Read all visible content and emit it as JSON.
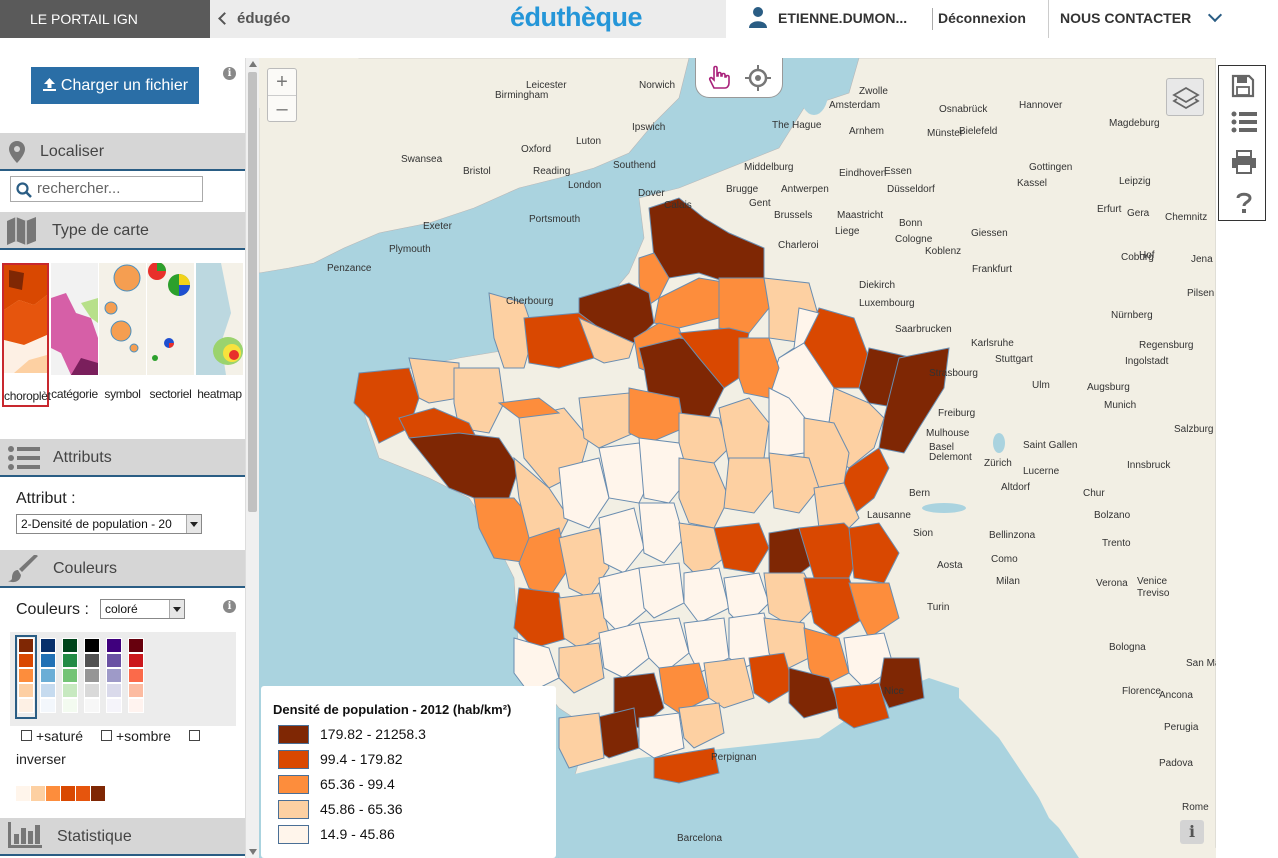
{
  "header": {
    "portail": "LE PORTAIL IGN",
    "back_link": "édugéo",
    "logo": "éduthèque",
    "user": "ETIENNE.DUMON...",
    "logout": "Déconnexion",
    "contact": "NOUS CONTACTER"
  },
  "sidebar": {
    "upload_label": "Charger un fichier",
    "localiser": "Localiser",
    "search_placeholder": "rechercher...",
    "map_type": "Type de carte",
    "thumbnails": [
      {
        "label": "choroplèt"
      },
      {
        "label": "catégorie"
      },
      {
        "label": "symbol"
      },
      {
        "label": "sectoriel"
      },
      {
        "label": "heatmap"
      }
    ],
    "attributes_head": "Attributs",
    "attribute_label": "Attribut :",
    "attribute_value": "2-Densité de population - 20",
    "colors_head": "Couleurs",
    "colors_label": "Couleurs :",
    "colors_value": "coloré",
    "check_sature": "+saturé",
    "check_sombre": "+sombre",
    "check_inverser": "inverser",
    "stats_head": "Statistique",
    "palettes": [
      [
        "#fdf0e4",
        "#fdcfa3",
        "#fd8d3c",
        "#d94801",
        "#7f2704"
      ],
      [
        "#f3f7fc",
        "#c6dbef",
        "#6baed6",
        "#2171b5",
        "#08306b"
      ],
      [
        "#f3fbf0",
        "#c7e9c0",
        "#74c476",
        "#238b45",
        "#00441b"
      ],
      [
        "#f7f7f7",
        "#d9d9d9",
        "#969696",
        "#525252",
        "#000000"
      ],
      [
        "#f5f4fa",
        "#dadaeb",
        "#9e9ac8",
        "#6a51a3",
        "#3f007d"
      ],
      [
        "#fff3ef",
        "#fcbba1",
        "#fb6a4a",
        "#cb181d",
        "#67000d"
      ]
    ],
    "legend_bar": [
      "#fff5eb",
      "#fdd0a2",
      "#fd8d3c",
      "#d94801",
      "#e6550d",
      "#7f2704"
    ]
  },
  "legend": {
    "title": "Densité de population - 2012 (hab/km²)",
    "classes": [
      {
        "label": "179.82 - 21258.3",
        "color": "#7f2704"
      },
      {
        "label": "99.4 - 179.82",
        "color": "#d94801"
      },
      {
        "label": "65.36 - 99.4",
        "color": "#fd8d3c"
      },
      {
        "label": "45.86 - 65.36",
        "color": "#fdd0a2"
      },
      {
        "label": "14.9 - 45.86",
        "color": "#fff5eb"
      }
    ]
  },
  "map": {
    "zoom_in": "+",
    "zoom_out": "–",
    "info": "i",
    "cities": [
      "Leicester",
      "Norwich",
      "Birmingham",
      "Luton",
      "Ipswich",
      "Oxford",
      "Swansea",
      "Bristol",
      "Reading",
      "Southend",
      "London",
      "Exeter",
      "Portsmouth",
      "Plymouth",
      "Penzance",
      "Dover",
      "Calais",
      "Zwolle",
      "Amsterdam",
      "The Hague",
      "Arnhem",
      "Osnabrück",
      "Münster",
      "Hannover",
      "Bielefeld",
      "Magdeburg",
      "Essen",
      "Middelburg",
      "Eindhoven",
      "Gottingen",
      "Leipzig",
      "Kassel",
      "Brugge",
      "Antwerpen",
      "Düsseldorf",
      "Gent",
      "Brussels",
      "Maastricht",
      "Bonn",
      "Cologne",
      "Erfurt",
      "Gera",
      "Chemnitz",
      "Liege",
      "Giessen",
      "Koblenz",
      "Charleroi",
      "Hof",
      "Jena",
      "Frankfurt",
      "Coburg",
      "Cherbourg",
      "Diekirch",
      "Luxembourg",
      "Pilsen",
      "Nürnberg",
      "Saarbrucken",
      "Karlsruhe",
      "Regensburg",
      "Stuttgart",
      "Ingolstadt",
      "Strasbourg",
      "Ulm",
      "Augsburg",
      "Munich",
      "Freiburg",
      "Mulhouse",
      "Basel",
      "Delemont",
      "Salzburg",
      "Innsbruck",
      "Zürich",
      "Saint Gallen",
      "Lucerne",
      "Altdorf",
      "Chur",
      "Bern",
      "Lausanne",
      "Sion",
      "Bolzano",
      "Bellinzona",
      "Trento",
      "Como",
      "Aosta",
      "Milan",
      "Verona",
      "Venice",
      "Treviso",
      "Turin",
      "Bologna",
      "San Marino",
      "Florence",
      "Ancona",
      "Perugia",
      "Rome",
      "Perpignan",
      "Barcelona",
      "Nice",
      "Padova"
    ]
  }
}
